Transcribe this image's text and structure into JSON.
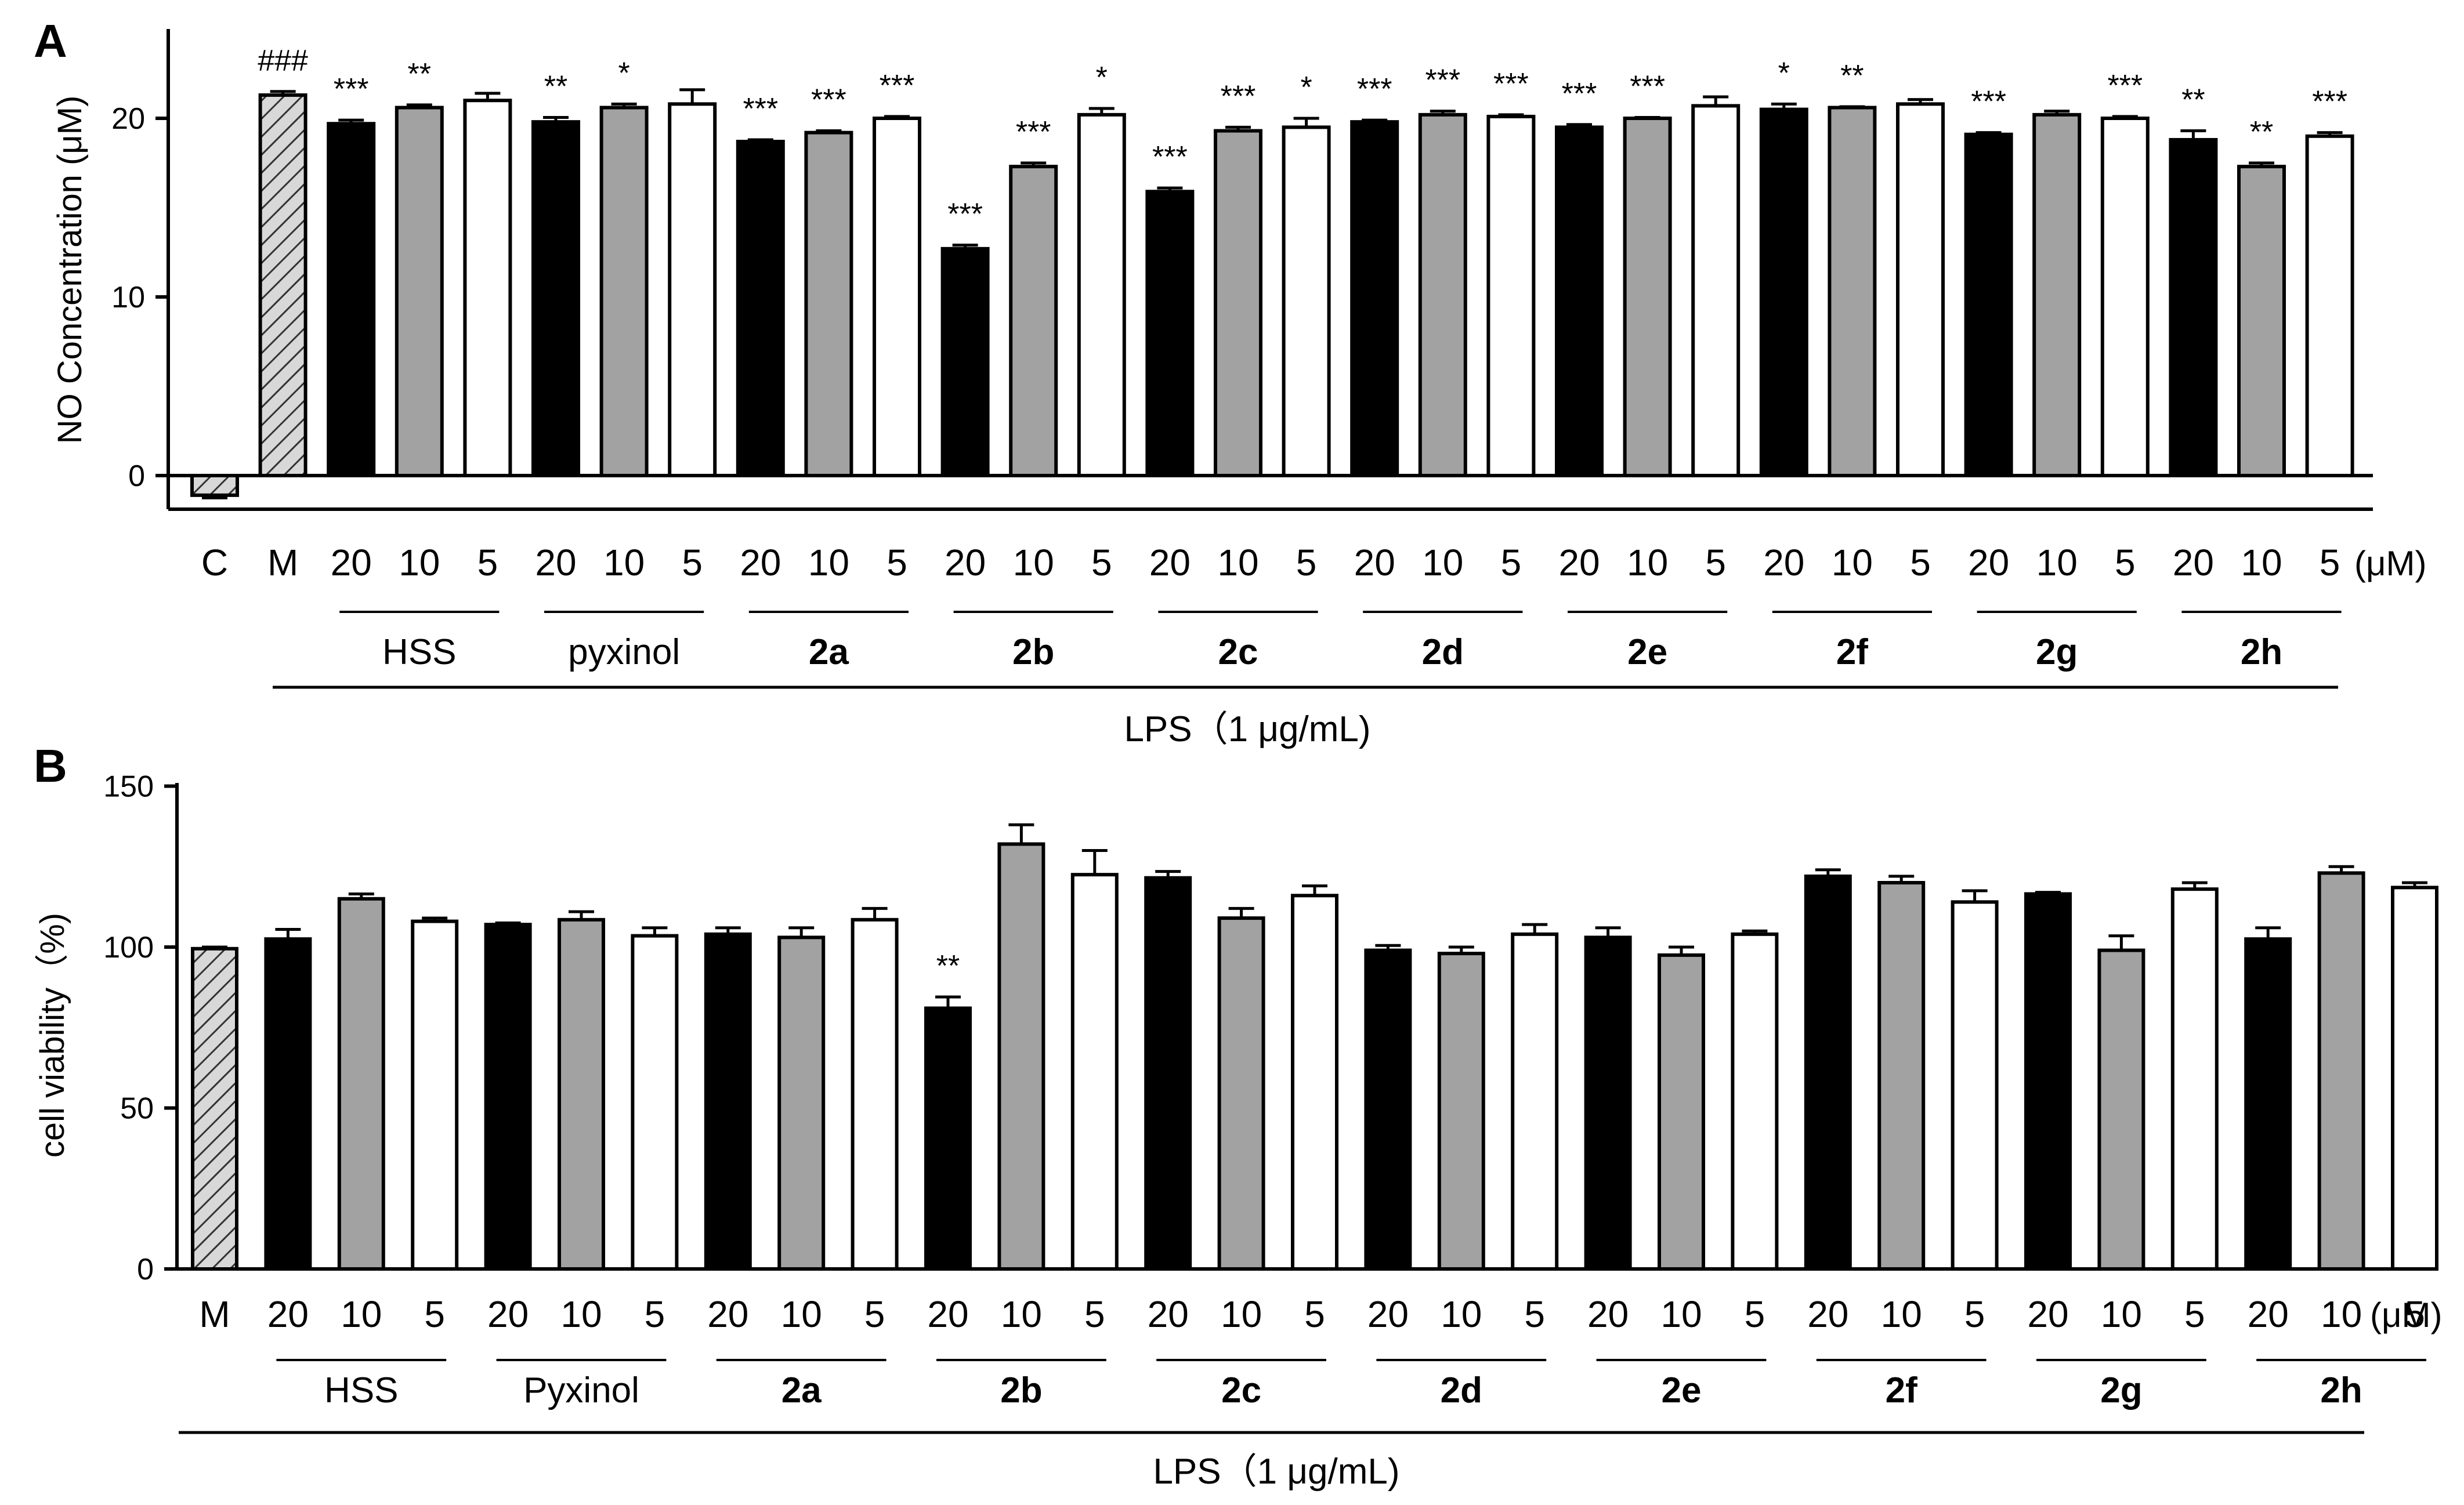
{
  "chart_data": [
    {
      "panel": "A",
      "type": "bar",
      "ylabel": "NO Concentration (μM)",
      "ylim": [
        -2,
        25
      ],
      "yticks": [
        0,
        10,
        20
      ],
      "unit": "(μM)",
      "treatment": "LPS（1 μg/mL)",
      "categories": [
        "C",
        "M",
        "20",
        "10",
        "5",
        "20",
        "10",
        "5",
        "20",
        "10",
        "5",
        "20",
        "10",
        "5",
        "20",
        "10",
        "5",
        "20",
        "10",
        "5",
        "20",
        "10",
        "5",
        "20",
        "10",
        "5",
        "20",
        "10",
        "5",
        "20",
        "10",
        "5"
      ],
      "bar_styles": [
        "hatched",
        "hatched",
        "black",
        "gray",
        "white",
        "black",
        "gray",
        "white",
        "black",
        "gray",
        "white",
        "black",
        "gray",
        "white",
        "black",
        "gray",
        "white",
        "black",
        "gray",
        "white",
        "black",
        "gray",
        "white",
        "black",
        "gray",
        "white",
        "black",
        "gray",
        "white",
        "black",
        "gray",
        "white"
      ],
      "values": [
        -1.1,
        21.3,
        19.7,
        20.6,
        21.0,
        19.8,
        20.6,
        20.8,
        18.7,
        19.2,
        20.0,
        12.7,
        17.3,
        20.2,
        15.9,
        19.3,
        19.5,
        19.8,
        20.2,
        20.1,
        19.5,
        20.0,
        20.7,
        20.5,
        20.6,
        20.8,
        19.1,
        20.2,
        20.0,
        18.8,
        17.3,
        19.0
      ],
      "errors": [
        0.15,
        0.2,
        0.2,
        0.15,
        0.4,
        0.25,
        0.2,
        0.8,
        0.1,
        0.1,
        0.1,
        0.2,
        0.2,
        0.35,
        0.2,
        0.2,
        0.5,
        0.1,
        0.2,
        0.1,
        0.15,
        0.05,
        0.5,
        0.3,
        0.05,
        0.25,
        0.1,
        0.2,
        0.1,
        0.5,
        0.2,
        0.2
      ],
      "significance": [
        "",
        "###",
        "***",
        "**",
        "",
        "**",
        "*",
        "",
        "***",
        "***",
        "***",
        "***",
        "***",
        "*",
        "***",
        "***",
        "*",
        "***",
        "***",
        "***",
        "***",
        "***",
        "",
        "*",
        "**",
        "",
        "***",
        "",
        "***",
        "**",
        "**",
        "***"
      ],
      "groups": [
        {
          "label": "HSS",
          "bold": false
        },
        {
          "label": "pyxinol",
          "bold": false
        },
        {
          "label": "2a",
          "bold": true
        },
        {
          "label": "2b",
          "bold": true
        },
        {
          "label": "2c",
          "bold": true
        },
        {
          "label": "2d",
          "bold": true
        },
        {
          "label": "2e",
          "bold": true
        },
        {
          "label": "2f",
          "bold": true
        },
        {
          "label": "2g",
          "bold": true
        },
        {
          "label": "2h",
          "bold": true
        }
      ]
    },
    {
      "panel": "B",
      "type": "bar",
      "ylabel": "cell viability（%)",
      "ylim": [
        0,
        150
      ],
      "yticks": [
        0,
        50,
        100,
        150
      ],
      "unit": "(μM)",
      "treatment": "LPS（1 μg/mL)",
      "categories": [
        "M",
        "20",
        "10",
        "5",
        "20",
        "10",
        "5",
        "20",
        "10",
        "5",
        "20",
        "10",
        "5",
        "20",
        "10",
        "5",
        "20",
        "10",
        "5",
        "20",
        "10",
        "5",
        "20",
        "10",
        "5",
        "20",
        "10",
        "5",
        "20",
        "10",
        "5"
      ],
      "bar_styles": [
        "hatched",
        "black",
        "gray",
        "white",
        "black",
        "gray",
        "white",
        "black",
        "gray",
        "white",
        "black",
        "gray",
        "white",
        "black",
        "gray",
        "white",
        "black",
        "gray",
        "white",
        "black",
        "gray",
        "white",
        "black",
        "gray",
        "white",
        "black",
        "gray",
        "white",
        "black",
        "gray",
        "white"
      ],
      "values": [
        99.5,
        102.5,
        115,
        108,
        107,
        108.5,
        103.5,
        104,
        103,
        108.5,
        81,
        132,
        122.5,
        121.5,
        109,
        116,
        99,
        98,
        104,
        103,
        97.5,
        104,
        122,
        120,
        114,
        116.5,
        99,
        118,
        102.5,
        123,
        118.5
      ],
      "errors": [
        0.5,
        3,
        1.5,
        1,
        0.5,
        2.5,
        2.5,
        2,
        3,
        3.5,
        3.5,
        6,
        7.5,
        2,
        3,
        3,
        1.5,
        2,
        3,
        3,
        2.5,
        1,
        2,
        2,
        3.5,
        0.5,
        4.5,
        2,
        3.5,
        2,
        1.5
      ],
      "significance": [
        "",
        "",
        "",
        "",
        "",
        "",
        "",
        "",
        "",
        "",
        "**",
        "",
        "",
        "",
        "",
        "",
        "",
        "",
        "",
        "",
        "",
        "",
        "",
        "",
        "",
        "",
        "",
        "",
        "",
        "",
        ""
      ],
      "groups": [
        {
          "label": "HSS",
          "bold": false
        },
        {
          "label": "Pyxinol",
          "bold": false
        },
        {
          "label": "2a",
          "bold": true
        },
        {
          "label": "2b",
          "bold": true
        },
        {
          "label": "2c",
          "bold": true
        },
        {
          "label": "2d",
          "bold": true
        },
        {
          "label": "2e",
          "bold": true
        },
        {
          "label": "2f",
          "bold": true
        },
        {
          "label": "2g",
          "bold": true
        },
        {
          "label": "2h",
          "bold": true
        }
      ]
    }
  ],
  "colors": {
    "black": "#000000",
    "gray": "#a2a2a2",
    "white": "#ffffff",
    "hatch_bg": "#d8d8d8"
  }
}
